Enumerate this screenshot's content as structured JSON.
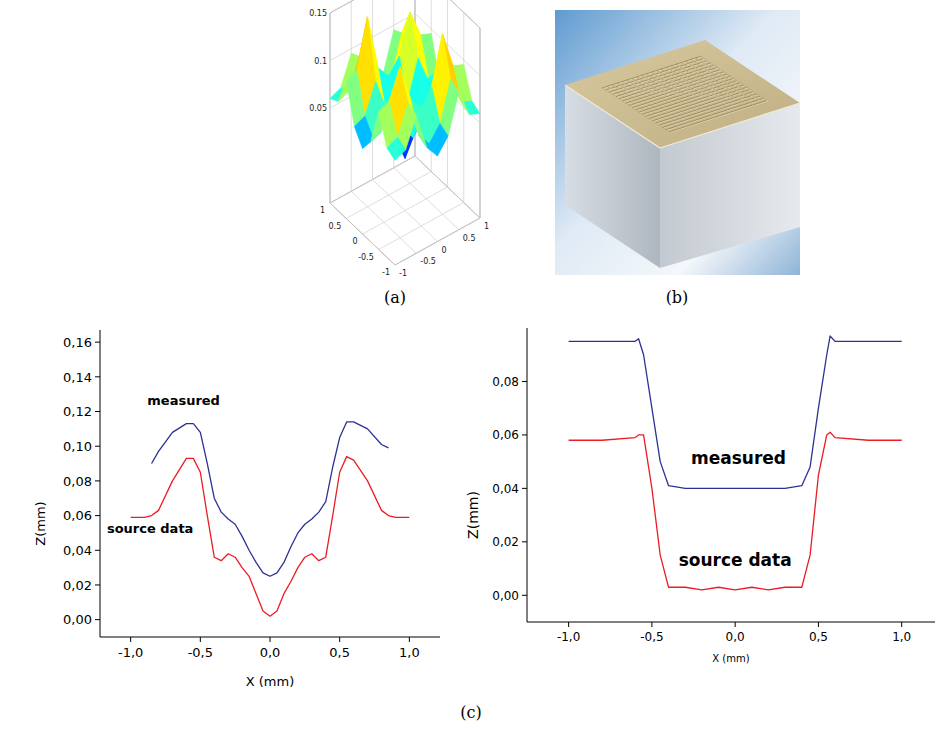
{
  "figure": {
    "panel_labels": [
      "(a)",
      "(b)",
      "(c)"
    ]
  },
  "chart_data": [
    {
      "type": "surface",
      "x": [
        -1,
        -0.75,
        -0.5,
        -0.25,
        0,
        0.25,
        0.5,
        0.75,
        1
      ],
      "y": [
        -1,
        -0.75,
        -0.5,
        -0.25,
        0,
        0.25,
        0.5,
        0.75,
        1
      ],
      "z": [
        [
          0.06,
          0.065,
          0.095,
          0.055,
          0.04,
          0.055,
          0.095,
          0.065,
          0.06
        ],
        [
          0.065,
          0.07,
          0.1,
          0.06,
          0.045,
          0.06,
          0.1,
          0.07,
          0.065
        ],
        [
          0.095,
          0.1,
          0.13,
          0.09,
          0.075,
          0.09,
          0.15,
          0.1,
          0.095
        ],
        [
          0.055,
          0.06,
          0.09,
          0.05,
          0.035,
          0.05,
          0.09,
          0.06,
          0.055
        ],
        [
          0.04,
          0.045,
          0.075,
          0.035,
          0.005,
          0.035,
          0.075,
          0.045,
          0.04
        ],
        [
          0.055,
          0.06,
          0.09,
          0.05,
          0.035,
          0.05,
          0.09,
          0.06,
          0.055
        ],
        [
          0.095,
          0.1,
          0.14,
          0.09,
          0.075,
          0.09,
          0.13,
          0.1,
          0.095
        ],
        [
          0.065,
          0.07,
          0.1,
          0.06,
          0.045,
          0.06,
          0.1,
          0.07,
          0.065
        ],
        [
          0.06,
          0.065,
          0.095,
          0.055,
          0.04,
          0.055,
          0.095,
          0.065,
          0.06
        ]
      ],
      "xlim": [
        -1,
        1
      ],
      "ylim": [
        -1,
        1
      ],
      "zlim": [
        -0.05,
        0.15
      ],
      "xticks": [
        -1,
        -0.5,
        0,
        0.5,
        1
      ],
      "yticks": [
        -1,
        -0.5,
        0,
        0.5,
        1
      ],
      "zticks": [
        0.05,
        0.1,
        0.15
      ],
      "grid": true
    },
    {
      "type": "line",
      "x": [
        -1,
        -0.9,
        -0.85,
        -0.8,
        -0.7,
        -0.6,
        -0.55,
        -0.5,
        -0.45,
        -0.4,
        -0.35,
        -0.3,
        -0.25,
        -0.2,
        -0.15,
        -0.1,
        -0.05,
        0,
        0.05,
        0.1,
        0.15,
        0.2,
        0.25,
        0.3,
        0.35,
        0.4,
        0.45,
        0.5,
        0.55,
        0.6,
        0.7,
        0.8,
        0.85,
        0.9,
        1
      ],
      "series": [
        {
          "color": "#2e3192",
          "values": [
            null,
            null,
            0.09,
            0.097,
            0.108,
            0.113,
            0.113,
            0.108,
            0.09,
            0.07,
            0.062,
            0.058,
            0.055,
            0.048,
            0.04,
            0.033,
            0.027,
            0.025,
            0.027,
            0.033,
            0.042,
            0.05,
            0.055,
            0.058,
            0.062,
            0.068,
            0.088,
            0.105,
            0.114,
            0.114,
            0.11,
            0.101,
            0.099,
            null,
            null
          ]
        },
        {
          "color": "#ed1c24",
          "values": [
            0.059,
            0.059,
            0.06,
            0.063,
            0.08,
            0.093,
            0.093,
            0.085,
            0.06,
            0.036,
            0.034,
            0.038,
            0.036,
            0.03,
            0.025,
            0.015,
            0.005,
            0.002,
            0.005,
            0.015,
            0.022,
            0.03,
            0.036,
            0.038,
            0.034,
            0.036,
            0.06,
            0.085,
            0.094,
            0.092,
            0.08,
            0.063,
            0.06,
            0.059,
            0.059
          ]
        }
      ],
      "xlim": [
        -1.22,
        1.22
      ],
      "ylim": [
        -0.01,
        0.167
      ],
      "xticks": [
        {
          "value": -1,
          "label": "-1,0"
        },
        {
          "value": -0.5,
          "label": "-0,5"
        },
        {
          "value": 0,
          "label": "0,0"
        },
        {
          "value": 0.5,
          "label": "0,5"
        },
        {
          "value": 1,
          "label": "1,0"
        }
      ],
      "yticks": [
        {
          "value": 0,
          "label": "0,00"
        },
        {
          "value": 0.02,
          "label": "0,02"
        },
        {
          "value": 0.04,
          "label": "0,04"
        },
        {
          "value": 0.06,
          "label": "0,06"
        },
        {
          "value": 0.08,
          "label": "0,08"
        },
        {
          "value": 0.1,
          "label": "0,10"
        },
        {
          "value": 0.12,
          "label": "0,12"
        },
        {
          "value": 0.14,
          "label": "0,14"
        },
        {
          "value": 0.16,
          "label": "0,16"
        }
      ],
      "x_label": "X (mm)",
      "y_label": "Z(mm)",
      "annotations": [
        {
          "text": "measured",
          "x": -0.62,
          "y": 0.124
        },
        {
          "text": "source data",
          "x": -0.86,
          "y": 0.05
        }
      ]
    },
    {
      "type": "line",
      "x": [
        -1,
        -0.8,
        -0.6,
        -0.58,
        -0.55,
        -0.5,
        -0.45,
        -0.4,
        -0.3,
        -0.2,
        -0.1,
        0,
        0.1,
        0.2,
        0.3,
        0.4,
        0.45,
        0.5,
        0.55,
        0.57,
        0.6,
        0.8,
        1
      ],
      "series": [
        {
          "color": "#2e3192",
          "values": [
            0.095,
            0.095,
            0.095,
            0.096,
            0.09,
            0.07,
            0.05,
            0.041,
            0.04,
            0.04,
            0.04,
            0.04,
            0.04,
            0.04,
            0.04,
            0.041,
            0.048,
            0.07,
            0.09,
            0.097,
            0.095,
            0.095,
            0.095
          ]
        },
        {
          "color": "#ed1c24",
          "values": [
            0.058,
            0.058,
            0.059,
            0.06,
            0.06,
            0.04,
            0.015,
            0.003,
            0.003,
            0.002,
            0.003,
            0.002,
            0.003,
            0.002,
            0.003,
            0.003,
            0.015,
            0.045,
            0.06,
            0.061,
            0.059,
            0.058,
            0.058
          ]
        }
      ],
      "xlim": [
        -1.25,
        1.2
      ],
      "ylim": [
        -0.01,
        0.1
      ],
      "xticks": [
        {
          "value": -1,
          "label": "-1,0"
        },
        {
          "value": -0.5,
          "label": "-0,5"
        },
        {
          "value": 0,
          "label": "0,0"
        },
        {
          "value": 0.5,
          "label": "0,5"
        },
        {
          "value": 1,
          "label": "1,0"
        }
      ],
      "yticks": [
        {
          "value": 0,
          "label": "0,00"
        },
        {
          "value": 0.02,
          "label": "0,02"
        },
        {
          "value": 0.04,
          "label": "0,04"
        },
        {
          "value": 0.06,
          "label": "0,06"
        },
        {
          "value": 0.08,
          "label": "0,08"
        }
      ],
      "x_label": "X (mm)",
      "y_label": "Z(mm)",
      "annotations": [
        {
          "text": "measured",
          "x": 0.02,
          "y": 0.049
        },
        {
          "text": "source data",
          "x": 0.0,
          "y": 0.011
        }
      ]
    }
  ]
}
